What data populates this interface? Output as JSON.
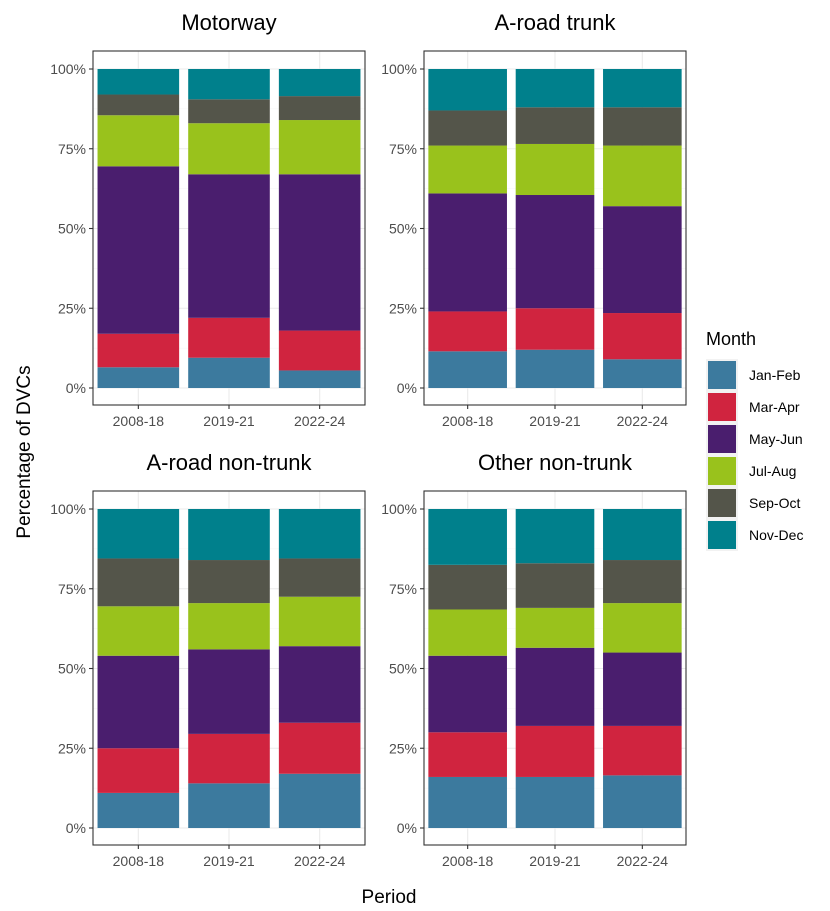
{
  "chart_data": {
    "type": "bar",
    "stacked": true,
    "xlabel": "Period",
    "ylabel": "Percentage of DVCs",
    "ylim": [
      0,
      100
    ],
    "y_ticks": [
      "0%",
      "25%",
      "50%",
      "75%",
      "100%"
    ],
    "grid": true,
    "legend": {
      "title": "Month",
      "placement": "right",
      "entries": [
        "Jan-Feb",
        "Mar-Apr",
        "May-Jun",
        "Jul-Aug",
        "Sep-Oct",
        "Nov-Dec"
      ]
    },
    "colors": {
      "Jan-Feb": "#3C7A9E",
      "Mar-Apr": "#D0243F",
      "May-Jun": "#4A1E6E",
      "Jul-Aug": "#99C21C",
      "Sep-Oct": "#54554A",
      "Nov-Dec": "#00808C"
    },
    "categories": [
      "2008-18",
      "2019-21",
      "2022-24"
    ],
    "panels": [
      {
        "title": "Motorway",
        "series": [
          {
            "name": "Jan-Feb",
            "values": [
              6.5,
              9.5,
              5.5
            ]
          },
          {
            "name": "Mar-Apr",
            "values": [
              10.5,
              12.5,
              12.5
            ]
          },
          {
            "name": "May-Jun",
            "values": [
              52.5,
              45.0,
              49.0
            ]
          },
          {
            "name": "Jul-Aug",
            "values": [
              16.0,
              16.0,
              17.0
            ]
          },
          {
            "name": "Sep-Oct",
            "values": [
              6.5,
              7.5,
              7.5
            ]
          },
          {
            "name": "Nov-Dec",
            "values": [
              8.0,
              9.5,
              8.5
            ]
          }
        ]
      },
      {
        "title": "A-road trunk",
        "series": [
          {
            "name": "Jan-Feb",
            "values": [
              11.5,
              12.0,
              9.0
            ]
          },
          {
            "name": "Mar-Apr",
            "values": [
              12.5,
              13.0,
              14.5
            ]
          },
          {
            "name": "May-Jun",
            "values": [
              37.0,
              35.5,
              33.5
            ]
          },
          {
            "name": "Jul-Aug",
            "values": [
              15.0,
              16.0,
              19.0
            ]
          },
          {
            "name": "Sep-Oct",
            "values": [
              11.0,
              11.5,
              12.0
            ]
          },
          {
            "name": "Nov-Dec",
            "values": [
              13.0,
              12.0,
              12.0
            ]
          }
        ]
      },
      {
        "title": "A-road non-trunk",
        "series": [
          {
            "name": "Jan-Feb",
            "values": [
              11.0,
              14.0,
              17.0
            ]
          },
          {
            "name": "Mar-Apr",
            "values": [
              14.0,
              15.5,
              16.0
            ]
          },
          {
            "name": "May-Jun",
            "values": [
              29.0,
              26.5,
              24.0
            ]
          },
          {
            "name": "Jul-Aug",
            "values": [
              15.5,
              14.5,
              15.5
            ]
          },
          {
            "name": "Sep-Oct",
            "values": [
              15.0,
              13.5,
              12.0
            ]
          },
          {
            "name": "Nov-Dec",
            "values": [
              15.5,
              16.0,
              15.5
            ]
          }
        ]
      },
      {
        "title": "Other non-trunk",
        "series": [
          {
            "name": "Jan-Feb",
            "values": [
              16.0,
              16.0,
              16.5
            ]
          },
          {
            "name": "Mar-Apr",
            "values": [
              14.0,
              16.0,
              15.5
            ]
          },
          {
            "name": "May-Jun",
            "values": [
              24.0,
              24.5,
              23.0
            ]
          },
          {
            "name": "Jul-Aug",
            "values": [
              14.5,
              12.5,
              15.5
            ]
          },
          {
            "name": "Sep-Oct",
            "values": [
              14.0,
              14.0,
              13.5
            ]
          },
          {
            "name": "Nov-Dec",
            "values": [
              17.5,
              17.0,
              16.0
            ]
          }
        ]
      }
    ]
  }
}
